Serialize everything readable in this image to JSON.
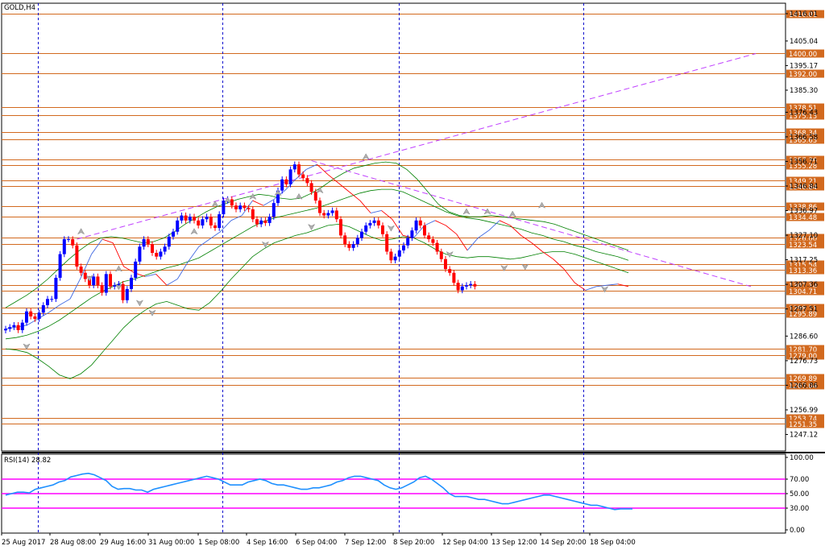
{
  "symbol_label": "GOLD,H4",
  "rsi_label": "RSI(14) 28.82",
  "colors": {
    "bull": "#0000ff",
    "bear": "#ff0000",
    "level": "#d2691e",
    "trendline": "#c040ff",
    "bands": "#008000",
    "line_chart": "#4169e1",
    "rsi_line": "#1e90ff",
    "rsi_levels": "#ff00ff",
    "session_sep": "#0000cd"
  },
  "chart_data": [
    {
      "type": "candlestick",
      "title": "GOLD,H4",
      "ylim": [
        1240.5,
        1420.2
      ],
      "price_ticks": [
        "1416.01",
        "1405.04",
        "1395.17",
        "1385.30",
        "1376.43",
        "1366.58",
        "1356.71",
        "1346.84",
        "1336.97",
        "1327.10",
        "1317.25",
        "1307.36",
        "1297.51",
        "1286.60",
        "1276.73",
        "1266.86",
        "1256.99",
        "1247.12"
      ],
      "horizontal_levels": [
        "1416.01",
        "1400.00",
        "1392.00",
        "1378.51",
        "1375.13",
        "1368.34",
        "1365.63",
        "1357.36",
        "1355.28",
        "1349.21",
        "1346.84",
        "1338.86",
        "1334.48",
        "1326.00",
        "1323.54",
        "1315.54",
        "1313.36",
        "1307.14",
        "1304.71",
        "1298.11",
        "1295.89",
        "1281.70",
        "1279.00",
        "1269.89",
        "1267.04",
        "1253.74",
        "1251.35"
      ],
      "x_labels": [
        "25 Aug 2017",
        "28 Aug 08:00",
        "29 Aug 16:00",
        "31 Aug 00:00",
        "1 Sep 08:00",
        "4 Sep 16:00",
        "6 Sep 04:00",
        "7 Sep 12:00",
        "8 Sep 20:00",
        "12 Sep 04:00",
        "13 Sep 12:00",
        "14 Sep 20:00",
        "18 Sep 04:00"
      ],
      "close": [
        1289.5,
        1290.2,
        1291.0,
        1289.0,
        1292.0,
        1296.5,
        1294.5,
        1293.5,
        1296.0,
        1299.0,
        1301.5,
        1301.5,
        1310.0,
        1319.5,
        1325.5,
        1325.5,
        1323.0,
        1314.5,
        1312.0,
        1309.5,
        1307.0,
        1310.5,
        1307.0,
        1304.0,
        1311.5,
        1306.5,
        1307.0,
        1307.5,
        1301.0,
        1305.5,
        1310.0,
        1316.5,
        1322.5,
        1325.5,
        1323.5,
        1320.0,
        1318.5,
        1320.5,
        1322.5,
        1326.5,
        1328.5,
        1333.0,
        1335.0,
        1333.0,
        1334.5,
        1333.0,
        1331.0,
        1333.5,
        1334.5,
        1331.0,
        1330.0,
        1335.5,
        1341.0,
        1341.5,
        1339.0,
        1337.5,
        1339.0,
        1338.0,
        1337.5,
        1333.5,
        1331.5,
        1333.0,
        1332.0,
        1334.5,
        1340.0,
        1345.0,
        1349.5,
        1347.5,
        1353.5,
        1355.5,
        1351.5,
        1350.0,
        1348.0,
        1344.5,
        1341.0,
        1336.0,
        1335.0,
        1336.0,
        1337.0,
        1333.5,
        1327.0,
        1323.5,
        1322.0,
        1323.5,
        1326.0,
        1328.5,
        1331.0,
        1332.0,
        1333.0,
        1331.0,
        1327.5,
        1320.5,
        1317.0,
        1318.5,
        1321.0,
        1323.0,
        1326.0,
        1329.0,
        1333.0,
        1331.0,
        1327.0,
        1325.5,
        1324.0,
        1320.5,
        1317.5,
        1313.5,
        1312.0,
        1308.0,
        1305.0,
        1306.5,
        1307.0,
        1307.5,
        1306.5
      ],
      "line_high": [
        1289.5,
        1290.2,
        1291.0,
        1293.5,
        1296.0,
        1299.0,
        1301.5,
        1310.0,
        1319.5,
        1325.5,
        1324.0,
        1314.5,
        1312.0,
        1310.5,
        1311.5,
        1307.0,
        1309.5,
        1316.5,
        1322.5,
        1325.5,
        1328.5,
        1333.0,
        1335.0,
        1341.0,
        1339.0,
        1341.5,
        1345.0,
        1349.5,
        1353.5,
        1355.5,
        1351.5,
        1348.0,
        1344.5,
        1341.0,
        1336.0,
        1337.0,
        1333.5,
        1327.0,
        1326.0,
        1331.0,
        1333.0,
        1331.0,
        1327.5,
        1321.0,
        1326.0,
        1329.0,
        1333.0,
        1331.0,
        1327.0,
        1324.0,
        1320.5,
        1317.5,
        1313.5,
        1308.0,
        1305.0,
        1306.5,
        1307.0,
        1307.5,
        1306.5
      ],
      "trendlines": [
        {
          "from": [
            17,
            1325.5
          ],
          "to": [
            149,
            1400.0
          ]
        },
        {
          "from": [
            73,
            1357.0
          ],
          "to": [
            148,
            1306.5
          ]
        }
      ],
      "bollinger_upper": [
        1298.0,
        1300.5,
        1303.0,
        1306.0,
        1309.5,
        1313.5,
        1317.5,
        1321.0,
        1324.0,
        1326.0,
        1326.5,
        1326.0,
        1325.0,
        1324.0,
        1324.5,
        1326.0,
        1328.5,
        1331.5,
        1334.0,
        1336.5,
        1338.5,
        1340.0,
        1341.5,
        1342.5,
        1343.5,
        1343.0,
        1342.0,
        1341.5,
        1342.0,
        1344.0,
        1346.5,
        1349.5,
        1352.0,
        1354.0,
        1355.0,
        1356.0,
        1356.5,
        1356.0,
        1353.5,
        1349.5,
        1344.5,
        1339.5,
        1336.5,
        1335.0,
        1334.5,
        1334.5,
        1335.0,
        1334.5,
        1334.0,
        1333.5,
        1333.0,
        1332.5,
        1331.5,
        1330.0,
        1328.5,
        1327.0,
        1325.5,
        1324.0,
        1322.5,
        1321.0
      ],
      "bollinger_mid": [
        1285.5,
        1286.0,
        1287.0,
        1288.5,
        1290.5,
        1293.0,
        1296.0,
        1299.0,
        1302.0,
        1304.5,
        1306.5,
        1308.5,
        1309.5,
        1311.0,
        1312.5,
        1314.0,
        1315.0,
        1316.5,
        1318.0,
        1320.5,
        1323.0,
        1325.5,
        1328.0,
        1330.5,
        1332.5,
        1334.0,
        1335.0,
        1336.0,
        1337.0,
        1338.0,
        1339.5,
        1341.0,
        1342.5,
        1344.0,
        1345.0,
        1345.5,
        1345.5,
        1344.5,
        1342.5,
        1340.5,
        1338.5,
        1336.5,
        1335.0,
        1334.0,
        1333.5,
        1332.5,
        1331.5,
        1330.5,
        1329.5,
        1328.0,
        1327.0,
        1325.5,
        1324.5,
        1323.0,
        1322.0,
        1320.5,
        1319.5,
        1318.5,
        1317.0
      ],
      "bollinger_lower": [
        1281.5,
        1281.0,
        1280.0,
        1277.5,
        1274.5,
        1271.0,
        1269.5,
        1271.5,
        1275.0,
        1280.0,
        1285.0,
        1290.0,
        1294.0,
        1297.0,
        1299.5,
        1300.5,
        1299.0,
        1297.5,
        1297.0,
        1300.0,
        1304.5,
        1309.5,
        1314.0,
        1318.5,
        1321.5,
        1324.0,
        1325.5,
        1327.0,
        1328.0,
        1329.5,
        1331.0,
        1331.5,
        1330.5,
        1328.5,
        1326.5,
        1325.0,
        1325.5,
        1326.5,
        1326.0,
        1324.0,
        1321.5,
        1319.5,
        1318.5,
        1318.0,
        1318.5,
        1318.5,
        1318.0,
        1317.5,
        1318.0,
        1319.0,
        1320.0,
        1320.5,
        1320.5,
        1319.5,
        1318.0,
        1316.5,
        1315.0,
        1313.5,
        1312.0
      ],
      "up_fractals": [
        [
          18,
          1328.5
        ],
        [
          27,
          1313.5
        ],
        [
          45,
          1328.5
        ],
        [
          50,
          1339.5
        ],
        [
          53,
          1341.0
        ],
        [
          59,
          1342.5
        ],
        [
          65,
          1344.0
        ],
        [
          70,
          1342.5
        ],
        [
          75,
          1345.0
        ],
        [
          86,
          1358.5
        ],
        [
          110,
          1336.5
        ],
        [
          115,
          1336.5
        ],
        [
          121,
          1335.5
        ],
        [
          128,
          1339.0
        ]
      ],
      "down_fractals": [
        [
          5,
          1282.5
        ],
        [
          20,
          1310.0
        ],
        [
          27,
          1306.5
        ],
        [
          32,
          1300.0
        ],
        [
          35,
          1296.0
        ],
        [
          62,
          1323.5
        ],
        [
          73,
          1330.5
        ],
        [
          92,
          1330.0
        ],
        [
          106,
          1319.5
        ],
        [
          119,
          1314.0
        ],
        [
          124,
          1314.5
        ],
        [
          143,
          1305.5
        ]
      ]
    },
    {
      "type": "line",
      "title": "RSI(14) 28.82",
      "ylim": [
        0,
        100
      ],
      "y_ticks": [
        "100.00",
        "70.00",
        "50.00",
        "30.00",
        "0.00"
      ],
      "levels": [
        70,
        50,
        30
      ],
      "current": 28.82,
      "values": [
        48,
        50,
        52,
        52,
        51,
        56,
        58,
        60,
        62,
        66,
        68,
        73,
        75,
        77,
        78,
        76,
        72,
        68,
        60,
        56,
        57,
        57,
        55,
        55,
        52,
        56,
        58,
        60,
        62,
        64,
        66,
        68,
        70,
        72,
        74,
        72,
        70,
        66,
        62,
        62,
        62,
        66,
        68,
        70,
        68,
        64,
        62,
        62,
        60,
        58,
        56,
        56,
        58,
        58,
        60,
        62,
        66,
        68,
        72,
        74,
        74,
        72,
        70,
        68,
        62,
        58,
        56,
        58,
        62,
        66,
        72,
        74,
        70,
        64,
        58,
        50,
        46,
        46,
        46,
        44,
        42,
        42,
        40,
        38,
        36,
        36,
        38,
        40,
        42,
        44,
        46,
        48,
        48,
        46,
        44,
        42,
        40,
        38,
        36,
        34,
        34,
        32,
        30,
        28,
        29,
        29,
        29
      ]
    }
  ]
}
